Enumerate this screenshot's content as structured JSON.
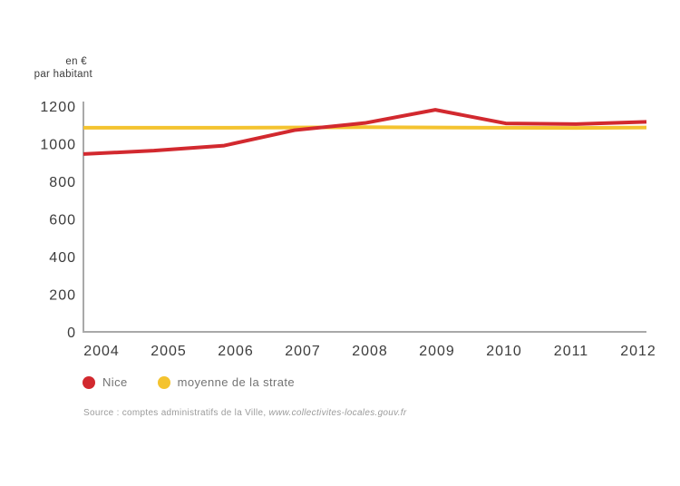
{
  "chart": {
    "unit_label_line1": "en €",
    "unit_label_line2": "par habitant"
  },
  "chart_data": {
    "type": "line",
    "title": "",
    "ylabel": "en € par habitant",
    "xlabel": "",
    "categories": [
      "2004",
      "2005",
      "2006",
      "2007",
      "2008",
      "2009",
      "2010",
      "2011",
      "2012"
    ],
    "series": [
      {
        "name": "Nice",
        "color": "#d2292f",
        "values": [
          945,
          963,
          990,
          1072,
          1110,
          1180,
          1108,
          1104,
          1116
        ]
      },
      {
        "name": "moyenne de la strate",
        "color": "#f4c32f",
        "values": [
          1085,
          1085,
          1085,
          1086,
          1088,
          1086,
          1085,
          1084,
          1086
        ]
      }
    ],
    "ylim": [
      0,
      1200
    ],
    "yticks": [
      0,
      200,
      400,
      600,
      800,
      1000,
      1200
    ],
    "grid": false,
    "legend_position": "bottom-left",
    "axis_color": "#a9a9a9",
    "tick_label_color": "#3c3c3c",
    "line_width": 4
  },
  "legend": {
    "items": [
      {
        "label": "Nice",
        "color": "#d2292f"
      },
      {
        "label": "moyenne de la strate",
        "color": "#f4c32f"
      }
    ]
  },
  "source": {
    "text": "Source : comptes administratifs de la Ville, ",
    "link_text": "www.collectivites-locales.gouv.fr"
  }
}
